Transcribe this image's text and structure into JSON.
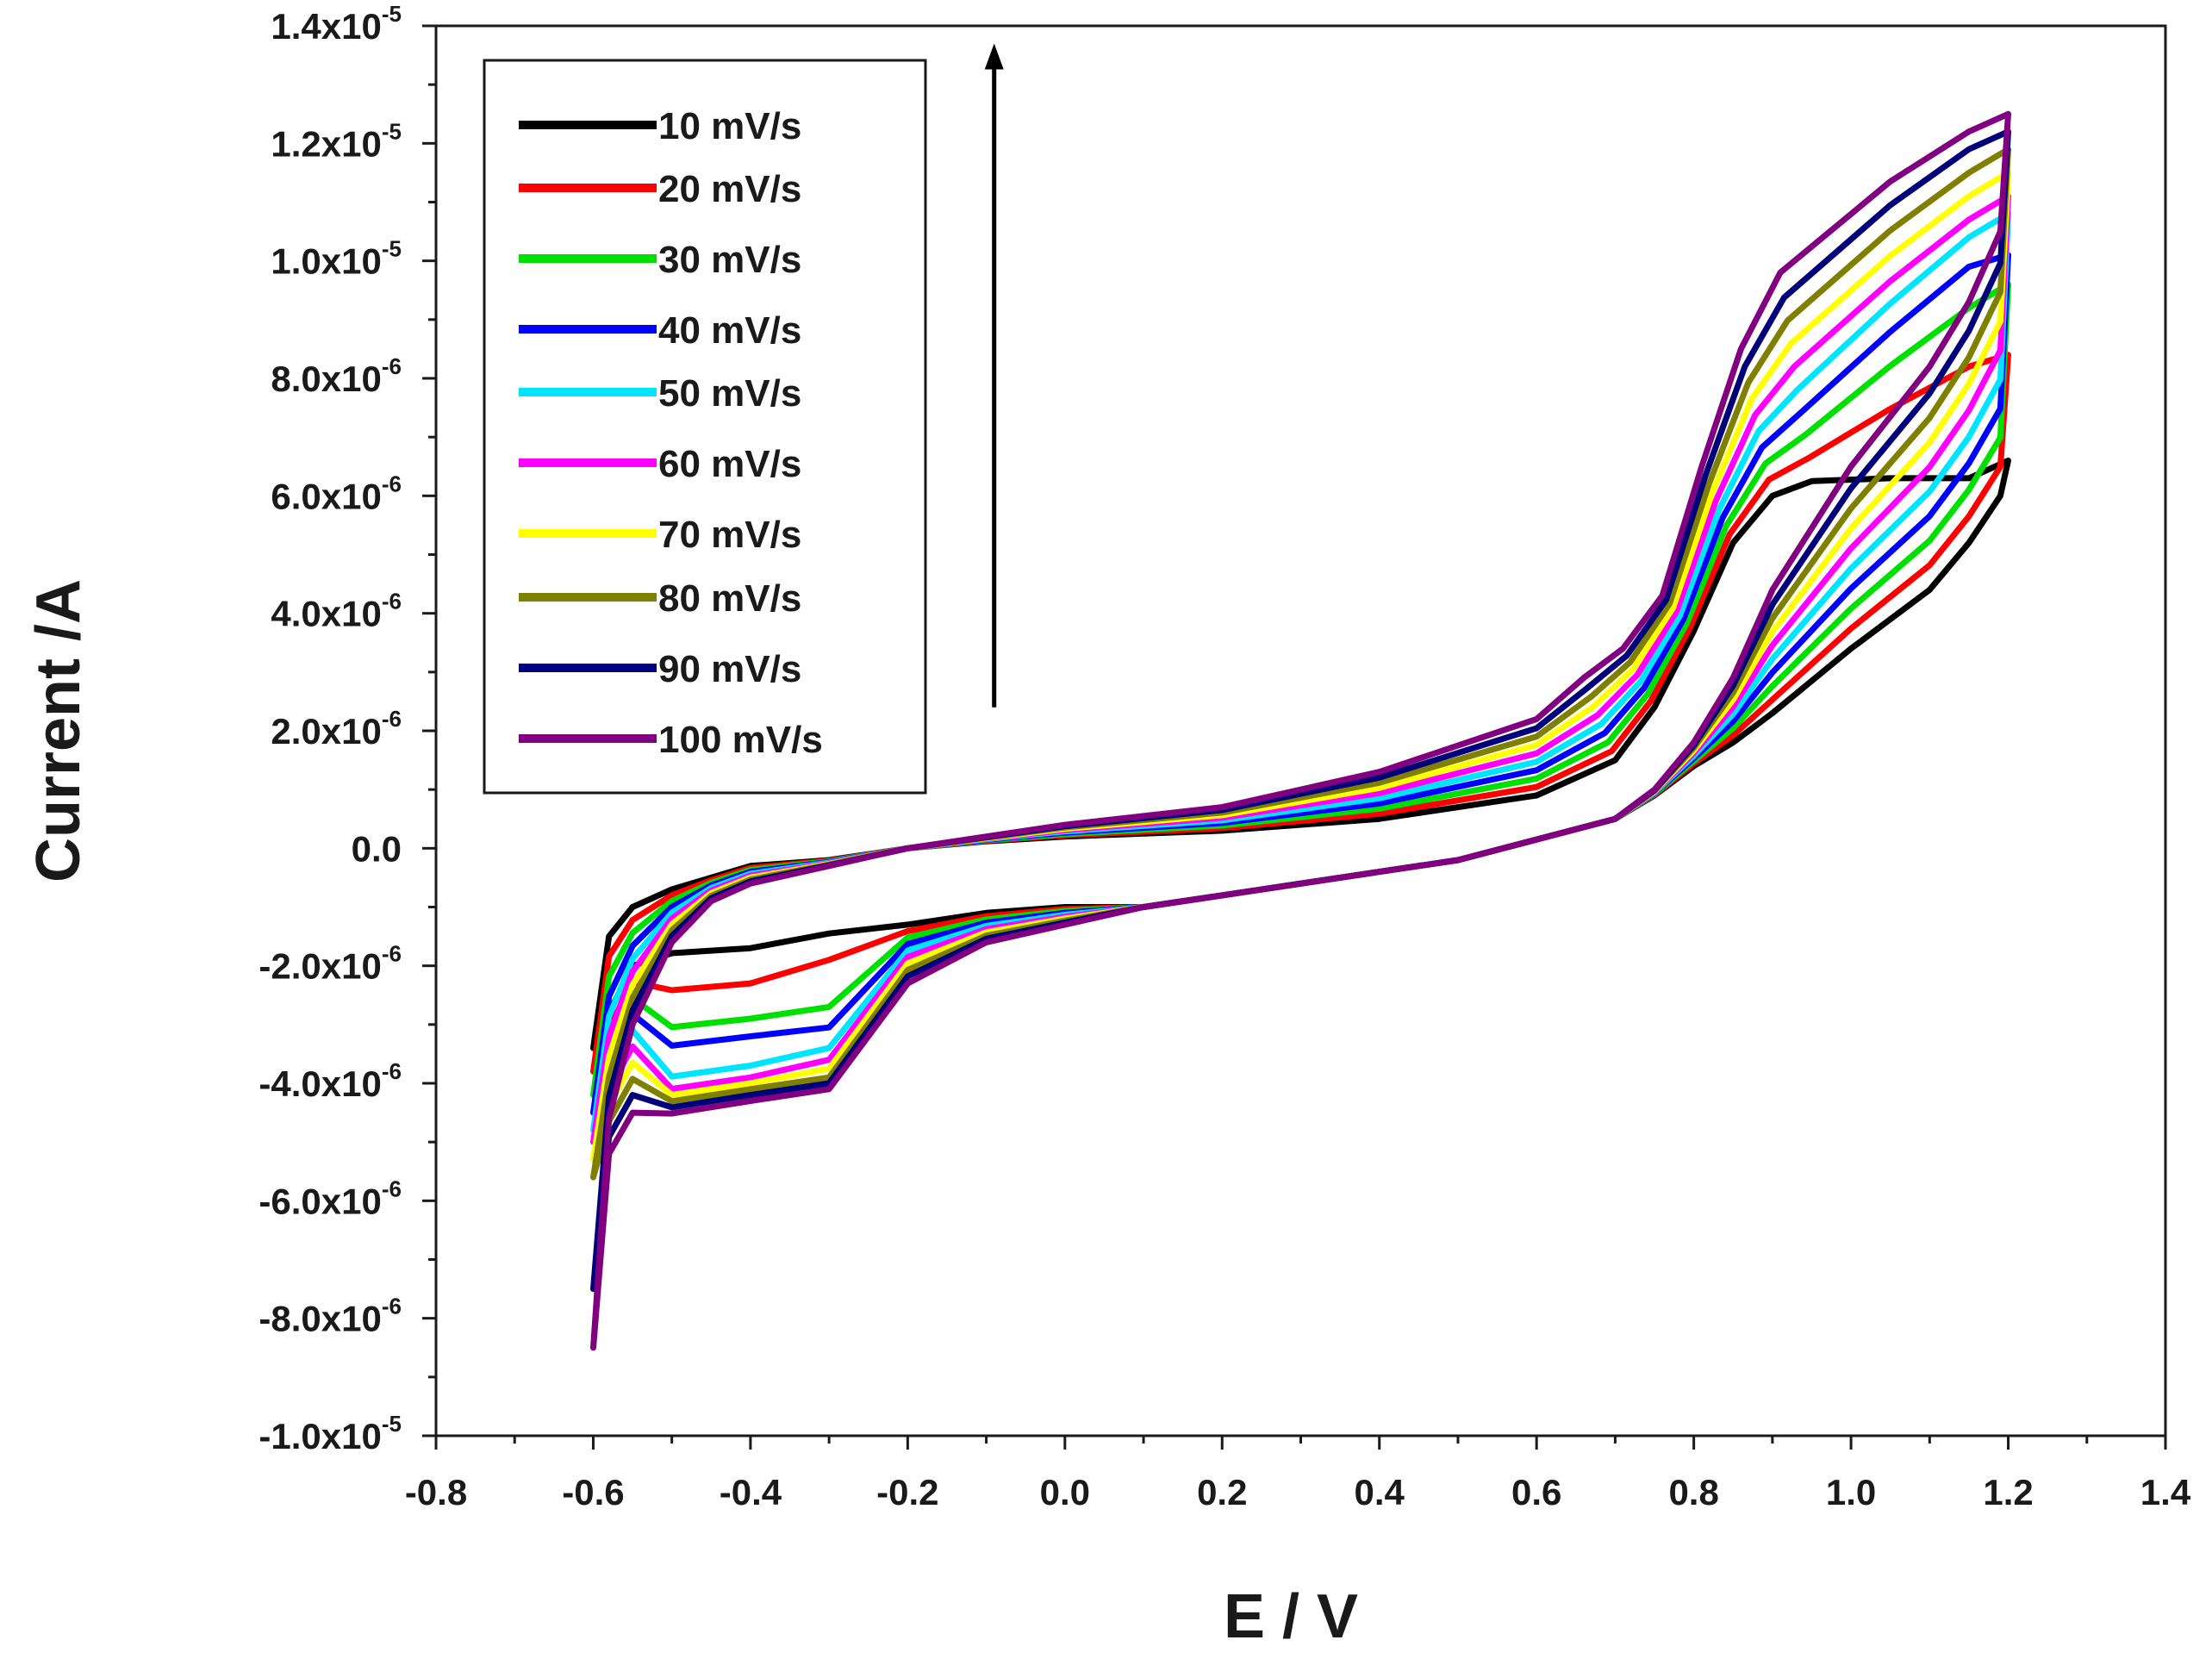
{
  "chart_data": {
    "type": "line",
    "title": "",
    "xlabel": "E / V",
    "ylabel": "Current /A",
    "xlim": [
      -0.8,
      1.4
    ],
    "ylim": [
      -1e-05,
      1.4e-05
    ],
    "x_ticks": [
      {
        "value": -0.8,
        "label": "-0.8"
      },
      {
        "value": -0.6,
        "label": "-0.6"
      },
      {
        "value": -0.4,
        "label": "-0.4"
      },
      {
        "value": -0.2,
        "label": "-0.2"
      },
      {
        "value": 0.0,
        "label": "0.0"
      },
      {
        "value": 0.2,
        "label": "0.2"
      },
      {
        "value": 0.4,
        "label": "0.4"
      },
      {
        "value": 0.6,
        "label": "0.6"
      },
      {
        "value": 0.8,
        "label": "0.8"
      },
      {
        "value": 1.0,
        "label": "1.0"
      },
      {
        "value": 1.2,
        "label": "1.2"
      },
      {
        "value": 1.4,
        "label": "1.4"
      }
    ],
    "y_ticks": [
      {
        "value": 1.4e-05,
        "mantissa": "1.4x10",
        "exp": "-5"
      },
      {
        "value": 1.2e-05,
        "mantissa": "1.2x10",
        "exp": "-5"
      },
      {
        "value": 1e-05,
        "mantissa": "1.0x10",
        "exp": "-5"
      },
      {
        "value": 8e-06,
        "mantissa": "8.0x10",
        "exp": "-6"
      },
      {
        "value": 6e-06,
        "mantissa": "6.0x10",
        "exp": "-6"
      },
      {
        "value": 4e-06,
        "mantissa": "4.0x10",
        "exp": "-6"
      },
      {
        "value": 2e-06,
        "mantissa": "2.0x10",
        "exp": "-6"
      },
      {
        "value": 0.0,
        "mantissa": "0.0",
        "exp": ""
      },
      {
        "value": -2e-06,
        "mantissa": "-2.0x10",
        "exp": "-6"
      },
      {
        "value": -4e-06,
        "mantissa": "-4.0x10",
        "exp": "-6"
      },
      {
        "value": -6e-06,
        "mantissa": "-6.0x10",
        "exp": "-6"
      },
      {
        "value": -8e-06,
        "mantissa": "-8.0x10",
        "exp": "-6"
      },
      {
        "value": -1e-05,
        "mantissa": "-1.0x10",
        "exp": "-5"
      }
    ],
    "legend_position": "top-left",
    "grid": false,
    "annotation": {
      "type": "arrow",
      "direction": "up",
      "x": -0.09,
      "y_start": 2.4e-06,
      "y_end": 1.37e-05
    },
    "series": [
      {
        "name": "10 mV/s",
        "color": "#000000",
        "scale": 0.0,
        "a": 6.3e-06,
        "b": 6.6e-06,
        "c": -1.7e-06,
        "d": -1.2e-06,
        "v": -3.4e-06
      },
      {
        "name": "20 mV/s",
        "color": "#ff0000",
        "scale": 0.11,
        "a": 8.2e-06,
        "b": 8.4e-06,
        "c": -2.3e-06,
        "d": -1.5e-06,
        "v": -3.8e-06
      },
      {
        "name": "30 mV/s",
        "color": "#00e000",
        "scale": 0.22,
        "a": 9.2e-06,
        "b": 9.6e-06,
        "c": -2.9e-06,
        "d": -2.5e-06,
        "v": -4.2e-06
      },
      {
        "name": "40 mV/s",
        "color": "#0000ff",
        "scale": 0.33,
        "a": 9.9e-06,
        "b": 1.01e-05,
        "c": -3.2e-06,
        "d": -2.9e-06,
        "v": -4.5e-06
      },
      {
        "name": "50 mV/s",
        "color": "#00e5ff",
        "scale": 0.44,
        "a": 1.04e-05,
        "b": 1.08e-05,
        "c": -3.7e-06,
        "d": -3.1e-06,
        "v": -4.8e-06
      },
      {
        "name": "60 mV/s",
        "color": "#ff00ff",
        "scale": 0.55,
        "a": 1.07e-05,
        "b": 1.11e-05,
        "c": -3.9e-06,
        "d": -3.3e-06,
        "v": -5e-06
      },
      {
        "name": "70 mV/s",
        "color": "#ffff00",
        "scale": 0.66,
        "a": 1.11e-05,
        "b": 1.15e-05,
        "c": -4e-06,
        "d": -3.5e-06,
        "v": -5.3e-06
      },
      {
        "name": "80 mV/s",
        "color": "#808000",
        "scale": 0.77,
        "a": 1.15e-05,
        "b": 1.19e-05,
        "c": -4.1e-06,
        "d": -3.7e-06,
        "v": -5.6e-06
      },
      {
        "name": "90 mV/s",
        "color": "#00007a",
        "scale": 0.88,
        "a": 1.19e-05,
        "b": 1.22e-05,
        "c": -4.2e-06,
        "d": -3.8e-06,
        "v": -7.5e-06
      },
      {
        "name": "100 mV/s",
        "color": "#800080",
        "scale": 1.0,
        "a": 1.22e-05,
        "b": 1.25e-05,
        "c": -4.3e-06,
        "d": -3.9e-06,
        "v": -8.5e-06
      }
    ]
  }
}
